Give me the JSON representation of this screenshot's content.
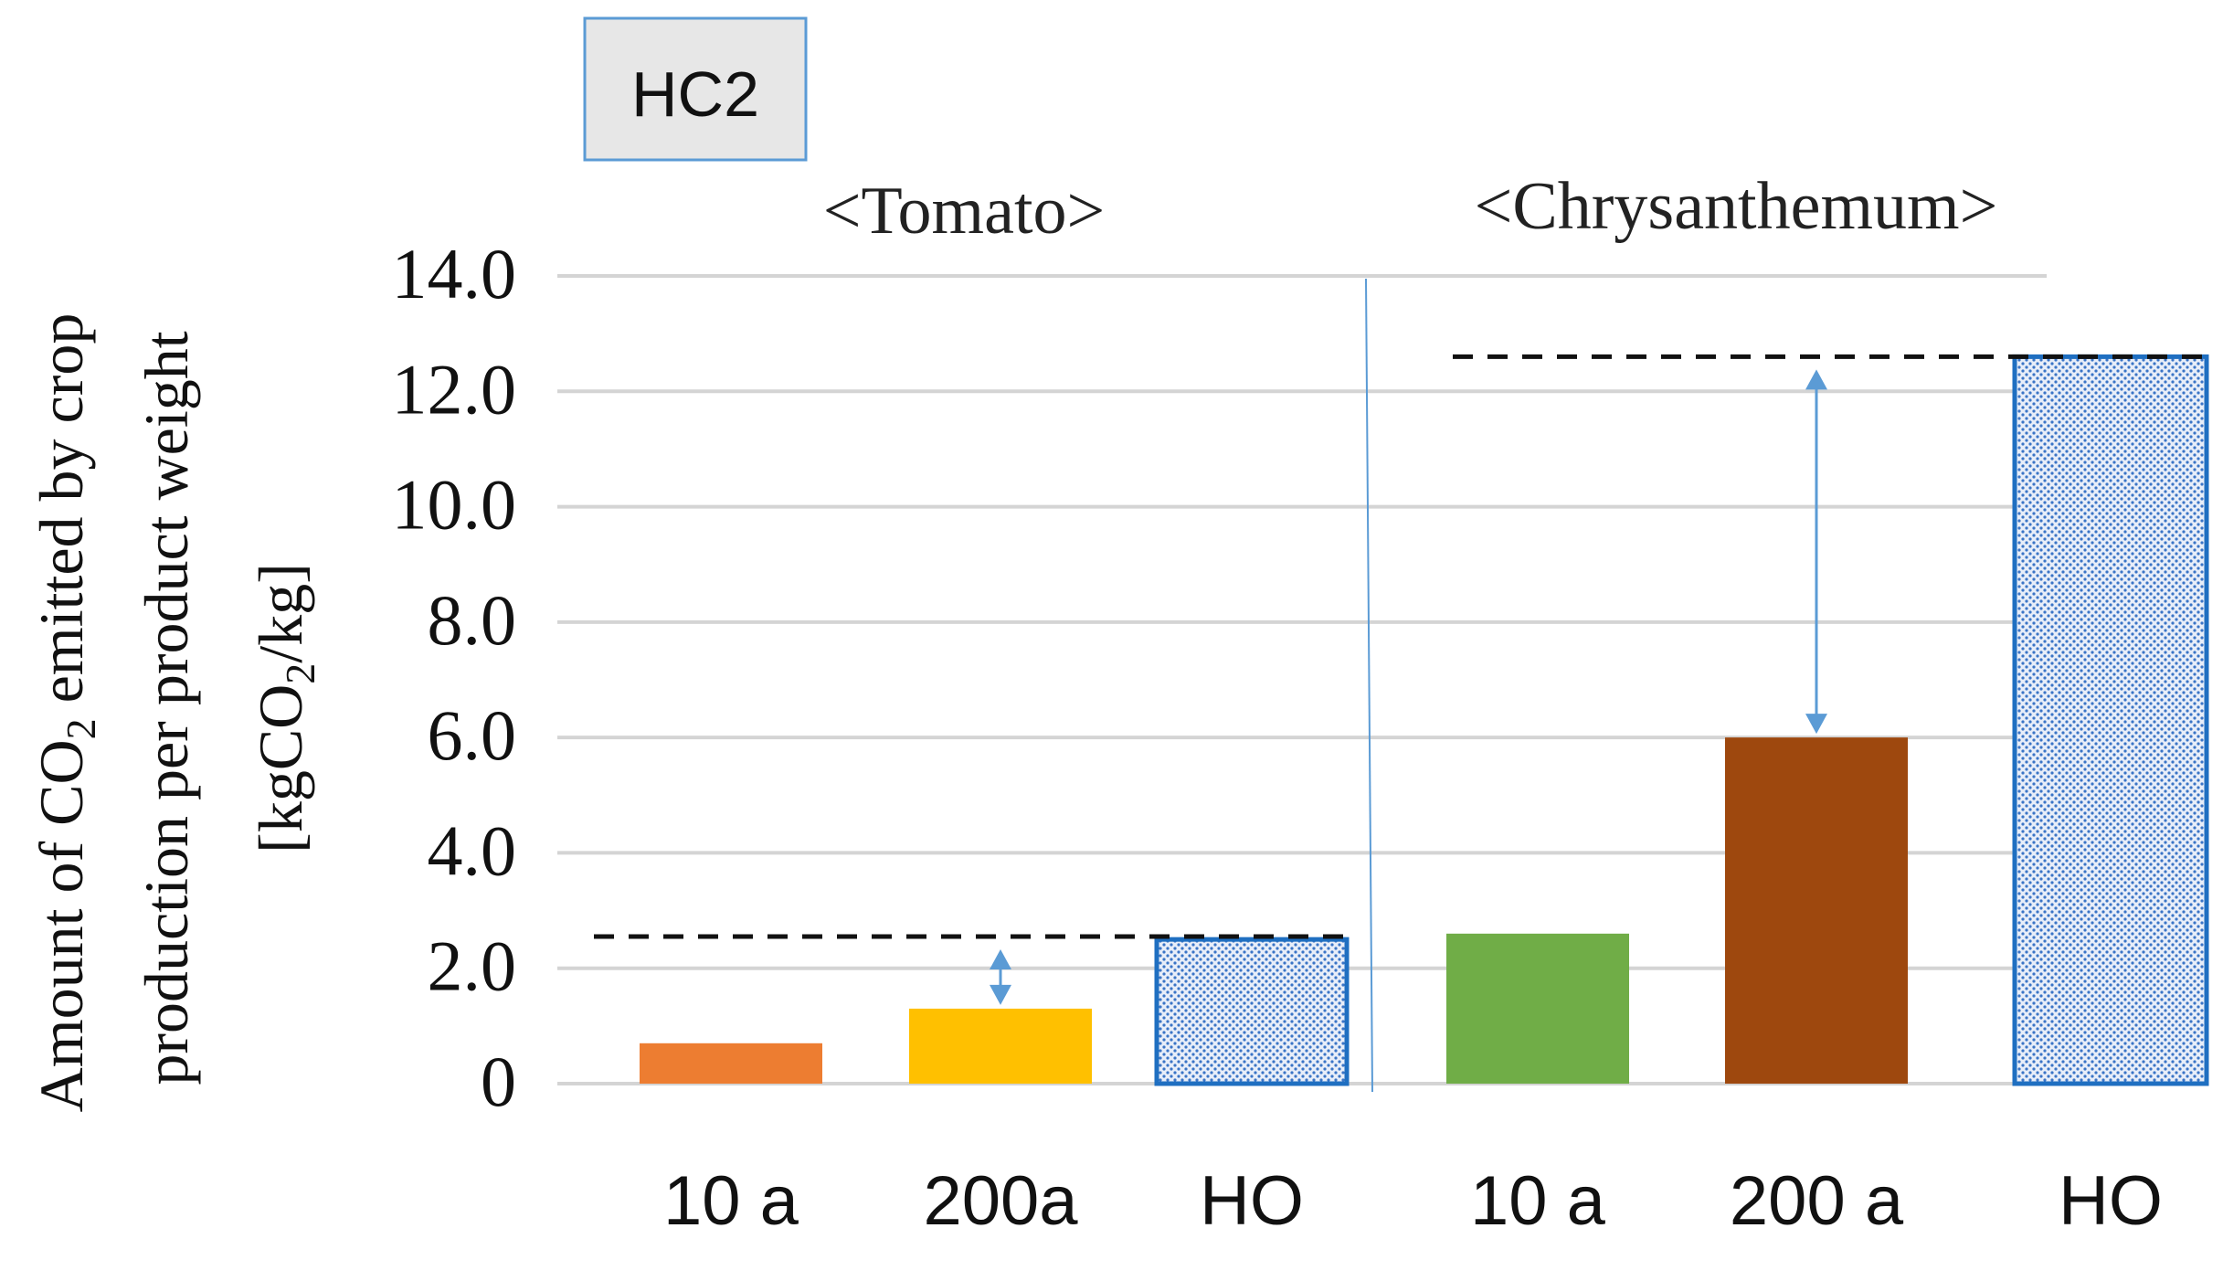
{
  "chart_data": {
    "type": "bar",
    "badge": "HC2",
    "ylabel_line1": "Amount of CO",
    "ylabel_line1_sub": "2",
    "ylabel_line1_rest": " emitted by crop",
    "ylabel_line2": "production per product weight",
    "ylabel_line3_a": "[kgCO",
    "ylabel_line3_sub": "2",
    "ylabel_line3_b": "/kg]",
    "ylim": [
      0,
      14
    ],
    "yticks": [
      {
        "value": 0,
        "label": "0"
      },
      {
        "value": 2,
        "label": "2.0"
      },
      {
        "value": 4,
        "label": "4.0"
      },
      {
        "value": 6,
        "label": "6.0"
      },
      {
        "value": 8,
        "label": "8.0"
      },
      {
        "value": 10,
        "label": "10.0"
      },
      {
        "value": 12,
        "label": "12.0"
      },
      {
        "value": 14,
        "label": "14.0"
      }
    ],
    "groups": [
      {
        "name": "<Tomato>",
        "bars": [
          {
            "label": "10 a",
            "value": 0.7,
            "color": "#ED7D31",
            "pattern": false
          },
          {
            "label": "200a",
            "value": 1.3,
            "color": "#FFC000",
            "pattern": false
          },
          {
            "label": "HO",
            "value": 2.5,
            "color": "#1F6FC1",
            "pattern": true
          }
        ],
        "reference_value": 2.55
      },
      {
        "name": "<Chrysanthemum>",
        "bars": [
          {
            "label": "10 a",
            "value": 2.6,
            "color": "#70AD47",
            "pattern": false
          },
          {
            "label": "200 a",
            "value": 6.0,
            "color": "#9E480E",
            "pattern": false
          },
          {
            "label": "HO",
            "value": 12.6,
            "color": "#1F6FC1",
            "pattern": true
          }
        ],
        "reference_value": 12.6
      }
    ]
  }
}
